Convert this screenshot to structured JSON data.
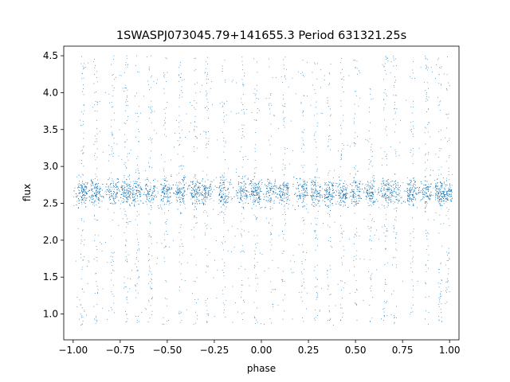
{
  "chart_data": {
    "type": "scatter",
    "title": "1SWASPJ073045.79+141655.3 Period 631321.25s",
    "xlabel": "phase",
    "ylabel": "flux",
    "xlim": [
      -1.05,
      1.05
    ],
    "ylim": [
      0.65,
      4.63
    ],
    "xticks": [
      -1.0,
      -0.75,
      -0.5,
      -0.25,
      0.0,
      0.25,
      0.5,
      0.75,
      1.0
    ],
    "xtick_labels": [
      "−1.00",
      "−0.75",
      "−0.50",
      "−0.25",
      "0.00",
      "0.25",
      "0.50",
      "0.75",
      "1.00"
    ],
    "yticks": [
      1.0,
      1.5,
      2.0,
      2.5,
      3.0,
      3.5,
      4.0,
      4.5
    ],
    "ytick_labels": [
      "1.0",
      "1.5",
      "2.0",
      "2.5",
      "3.0",
      "3.5",
      "4.0",
      "4.5"
    ],
    "grid": false,
    "color": "#1f77b4",
    "series": [
      {
        "cluster_centers": [
          -0.95,
          -0.88,
          -0.79,
          -0.72,
          -0.66,
          -0.59,
          -0.51,
          -0.43,
          -0.35,
          -0.29,
          -0.2,
          -0.1,
          -0.03,
          0.05,
          0.12,
          0.22,
          0.29,
          0.36,
          0.43,
          0.5,
          0.58,
          0.66,
          0.71,
          0.8,
          0.88,
          0.95,
          0.99
        ],
        "band_center": 2.65,
        "band_halfwidth": 0.35,
        "outlier_range": [
          0.85,
          4.5
        ]
      }
    ]
  }
}
